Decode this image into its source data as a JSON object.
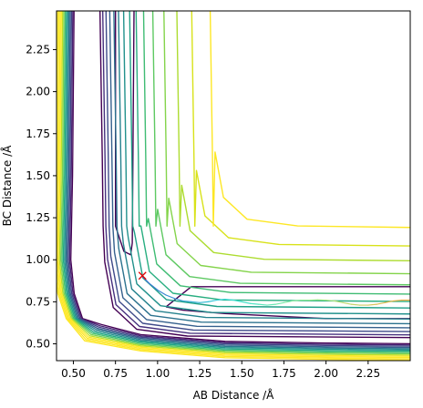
{
  "chart_data": {
    "type": "contour",
    "title": "",
    "xlabel": "AB Distance /Å",
    "ylabel": "BC Distance /Å",
    "xlim": [
      0.4,
      2.5
    ],
    "ylim": [
      0.4,
      2.48
    ],
    "x_ticks": [
      0.5,
      0.75,
      1.0,
      1.25,
      1.5,
      1.75,
      2.0,
      2.25
    ],
    "x_tick_labels": [
      "0.50",
      "0.75",
      "1.00",
      "1.25",
      "1.50",
      "1.75",
      "2.00",
      "2.25"
    ],
    "y_ticks": [
      0.5,
      0.75,
      1.0,
      1.25,
      1.5,
      1.75,
      2.0,
      2.25
    ],
    "y_tick_labels": [
      "0.50",
      "0.75",
      "1.00",
      "1.25",
      "1.50",
      "1.75",
      "2.00",
      "2.25"
    ],
    "grid": false,
    "colormap": "viridis",
    "contour_lines": [
      {
        "kind": "basin",
        "color": "#440154",
        "points": [
          [
            0.75,
            2.48
          ],
          [
            0.75,
            1.2
          ],
          [
            0.8,
            1.05
          ],
          [
            0.84,
            1.03
          ],
          [
            0.85,
            1.1
          ],
          [
            0.86,
            2.48
          ]
        ]
      },
      {
        "kind": "basin",
        "color": "#440154",
        "points": [
          [
            1.05,
            0.72
          ],
          [
            1.2,
            0.84
          ],
          [
            1.6,
            0.84
          ],
          [
            2.0,
            0.84
          ],
          [
            2.5,
            0.84
          ]
        ]
      },
      {
        "kind": "basin",
        "color": "#440154",
        "points": [
          [
            1.05,
            0.72
          ],
          [
            1.15,
            0.7
          ],
          [
            1.4,
            0.68
          ],
          [
            2.0,
            0.65
          ],
          [
            2.5,
            0.65
          ]
        ]
      },
      {
        "kind": "level",
        "color": "#440154",
        "offset": 0.03
      },
      {
        "kind": "level",
        "color": "#46317e",
        "offset": 0.06
      },
      {
        "kind": "level",
        "color": "#3e4a89",
        "offset": 0.095
      },
      {
        "kind": "level",
        "color": "#35608d",
        "offset": 0.135
      },
      {
        "kind": "level",
        "color": "#2c728e",
        "offset": 0.18
      },
      {
        "kind": "level",
        "color": "#26828e",
        "offset": 0.23
      },
      {
        "kind": "level",
        "color": "#21918c",
        "offset": 0.285
      },
      {
        "kind": "level",
        "color": "#1fa088",
        "offset": 0.35
      },
      {
        "kind": "level",
        "color": "#28ae80",
        "offset": 0.42
      },
      {
        "kind": "level",
        "color": "#3fbc73",
        "offset": 0.5
      },
      {
        "kind": "level",
        "color": "#5ec962",
        "offset": 0.6
      },
      {
        "kind": "level",
        "color": "#84d44b",
        "offset": 0.72
      },
      {
        "kind": "level",
        "color": "#addc30",
        "offset": 0.86
      },
      {
        "kind": "level",
        "color": "#d8e219",
        "offset": 1.02
      },
      {
        "kind": "level",
        "color": "#fde725",
        "offset": 1.22
      }
    ],
    "repulsive_wall_colors": [
      "#440154",
      "#482475",
      "#414487",
      "#355f8d",
      "#2a788e",
      "#21918c",
      "#22a884",
      "#44bf70",
      "#7ad151",
      "#bddf26",
      "#fde725",
      "#fde725",
      "#fde725",
      "#fde725"
    ],
    "trajectory": {
      "color_start": "#3b6fd0",
      "color_mid": "#38e0d8",
      "color_mid2": "#a6f08a",
      "color_end": "#f2a93b",
      "points": [
        [
          0.91,
          0.9
        ],
        [
          0.95,
          0.86
        ],
        [
          1.0,
          0.82
        ],
        [
          1.05,
          0.79
        ],
        [
          1.1,
          0.77
        ],
        [
          1.15,
          0.755
        ],
        [
          1.2,
          0.75
        ],
        [
          1.25,
          0.745
        ],
        [
          1.3,
          0.75
        ],
        [
          1.35,
          0.76
        ],
        [
          1.4,
          0.765
        ],
        [
          1.45,
          0.76
        ],
        [
          1.5,
          0.75
        ],
        [
          1.55,
          0.74
        ],
        [
          1.6,
          0.735
        ],
        [
          1.65,
          0.73
        ],
        [
          1.7,
          0.735
        ],
        [
          1.75,
          0.745
        ],
        [
          1.8,
          0.755
        ],
        [
          1.85,
          0.76
        ],
        [
          1.9,
          0.76
        ],
        [
          1.95,
          0.762
        ],
        [
          2.0,
          0.76
        ],
        [
          2.05,
          0.755
        ],
        [
          2.1,
          0.745
        ],
        [
          2.15,
          0.735
        ],
        [
          2.2,
          0.73
        ],
        [
          2.25,
          0.73
        ],
        [
          2.3,
          0.735
        ],
        [
          2.35,
          0.745
        ],
        [
          2.4,
          0.755
        ],
        [
          2.45,
          0.76
        ],
        [
          2.5,
          0.76
        ]
      ]
    },
    "start_marker": {
      "x": 0.91,
      "y": 0.905,
      "symbol": "x",
      "color": "#e00000"
    }
  }
}
